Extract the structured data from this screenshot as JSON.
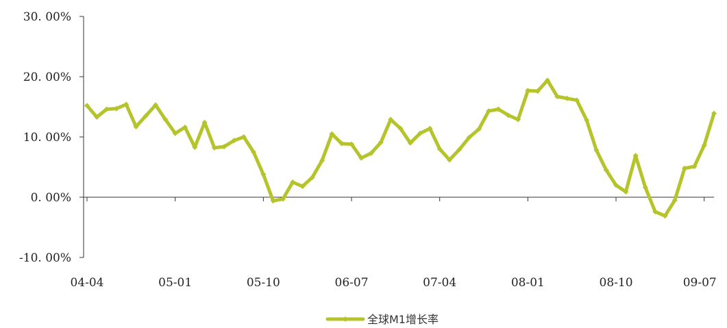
{
  "chart_data": {
    "type": "line",
    "title": "",
    "xlabel": "",
    "ylabel": "",
    "ylim": [
      -10,
      30
    ],
    "y_ticks": [
      30,
      20,
      10,
      0,
      -10
    ],
    "y_tick_labels": [
      "30. 00%",
      "20. 00%",
      "10. 00%",
      "0. 00%",
      "-10. 00%"
    ],
    "x_tick_labels": [
      "04-04",
      "05-01",
      "05-10",
      "06-07",
      "07-04",
      "08-01",
      "08-10",
      "09-07"
    ],
    "grid": false,
    "legend_position": "bottom",
    "series": [
      {
        "name": "全球M1增长率",
        "color": "#b5c42a",
        "x": [
          "04-04",
          "04-05",
          "04-06",
          "04-07",
          "04-08",
          "04-09",
          "04-10",
          "04-11",
          "04-12",
          "05-01",
          "05-02",
          "05-03",
          "05-04",
          "05-05",
          "05-06",
          "05-07",
          "05-08",
          "05-09",
          "05-10",
          "05-11",
          "05-12",
          "06-01",
          "06-02",
          "06-03",
          "06-04",
          "06-05",
          "06-06",
          "06-07",
          "06-08",
          "06-09",
          "06-10",
          "06-11",
          "06-12",
          "07-01",
          "07-02",
          "07-03",
          "07-04",
          "07-05",
          "07-06",
          "07-07",
          "07-08",
          "07-09",
          "07-10",
          "07-11",
          "07-12",
          "08-01",
          "08-02",
          "08-03",
          "08-04",
          "08-05",
          "08-06",
          "08-07",
          "08-08",
          "08-09",
          "08-10",
          "08-11",
          "08-12",
          "09-01",
          "09-02",
          "09-03",
          "09-04",
          "09-05",
          "09-06",
          "09-07",
          "09-08"
        ],
        "values": [
          15.2,
          13.3,
          14.6,
          14.7,
          15.4,
          11.7,
          13.5,
          15.3,
          12.9,
          10.6,
          11.6,
          8.3,
          12.4,
          8.2,
          8.4,
          9.4,
          10.0,
          7.5,
          3.8,
          -0.6,
          -0.3,
          2.5,
          1.8,
          3.3,
          6.1,
          10.5,
          8.9,
          8.8,
          6.5,
          7.3,
          9.1,
          12.9,
          11.4,
          9.0,
          10.6,
          11.4,
          8.0,
          6.2,
          7.9,
          9.9,
          11.3,
          14.3,
          14.6,
          13.6,
          12.9,
          17.7,
          17.6,
          19.4,
          16.7,
          16.4,
          16.1,
          12.8,
          7.8,
          4.5,
          2.0,
          0.9,
          6.9,
          1.6,
          -2.4,
          -3.1,
          -0.5,
          4.8,
          5.1,
          8.6,
          13.9
        ]
      }
    ]
  }
}
